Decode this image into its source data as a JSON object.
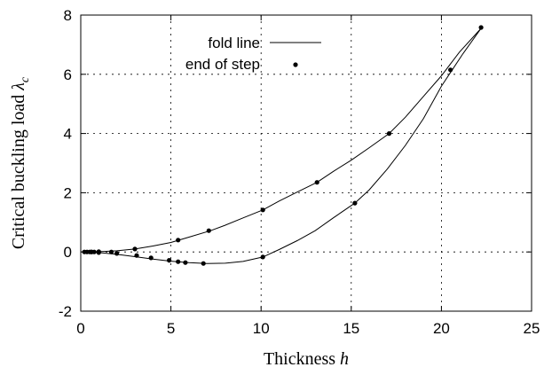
{
  "chart_data": {
    "type": "line",
    "xlabel": "Thickness",
    "xlabel_symbol": "h",
    "ylabel": "Critical buckling load",
    "ylabel_symbol": "λ",
    "ylabel_subscript": "c",
    "xlim": [
      0,
      25
    ],
    "ylim": [
      -2,
      8
    ],
    "x_ticks": [
      0,
      5,
      10,
      15,
      20,
      25
    ],
    "y_ticks": [
      -2,
      0,
      2,
      4,
      6,
      8
    ],
    "grid": true,
    "legend_position": "top-center",
    "series": [
      {
        "name": "fold line",
        "style": "line",
        "branches": [
          {
            "x": [
              0.2,
              1.0,
              2.0,
              3.0,
              4.0,
              5.0,
              6.0,
              7.0,
              8.0,
              9.0,
              10.1,
              11.0,
              12.0,
              13.0,
              14.0,
              15.2,
              16.0,
              17.0,
              18.0,
              19.0,
              20.0,
              20.6,
              21.2,
              22.2
            ],
            "y": [
              0.0,
              -0.02,
              -0.08,
              -0.16,
              -0.24,
              -0.31,
              -0.36,
              -0.39,
              -0.38,
              -0.32,
              -0.17,
              0.08,
              0.38,
              0.72,
              1.15,
              1.65,
              2.1,
              2.8,
              3.6,
              4.5,
              5.6,
              6.15,
              6.7,
              7.55
            ]
          },
          {
            "x": [
              0.2,
              1.0,
              2.0,
              3.0,
              4.0,
              5.0,
              6.0,
              7.2,
              8.0,
              9.0,
              10.1,
              11.0,
              12.0,
              13.1,
              14.0,
              15.0,
              16.0,
              17.1,
              18.0,
              19.0,
              20.0,
              21.0,
              22.2
            ],
            "y": [
              0.0,
              0.01,
              0.04,
              0.1,
              0.2,
              0.32,
              0.5,
              0.72,
              0.9,
              1.15,
              1.42,
              1.72,
              2.02,
              2.35,
              2.72,
              3.1,
              3.52,
              4.0,
              4.55,
              5.25,
              5.95,
              6.75,
              7.55
            ]
          }
        ]
      },
      {
        "name": "end of step",
        "style": "points",
        "x": [
          0.2,
          0.35,
          0.5,
          0.6,
          0.75,
          1.0,
          1.7,
          2.0,
          3.1,
          3.9,
          4.9,
          5.4,
          5.8,
          6.8,
          10.1,
          15.2,
          20.5,
          22.2,
          0.6,
          1.0,
          3.0,
          5.4,
          7.1,
          10.1,
          13.1,
          17.1
        ],
        "y": [
          0.0,
          0.0,
          0.0,
          0.0,
          0.0,
          -0.02,
          0.0,
          -0.05,
          -0.12,
          -0.2,
          -0.28,
          -0.33,
          -0.36,
          -0.39,
          -0.17,
          1.65,
          6.15,
          7.58,
          0.0,
          0.01,
          0.1,
          0.4,
          0.72,
          1.42,
          2.35,
          4.0
        ]
      }
    ]
  }
}
